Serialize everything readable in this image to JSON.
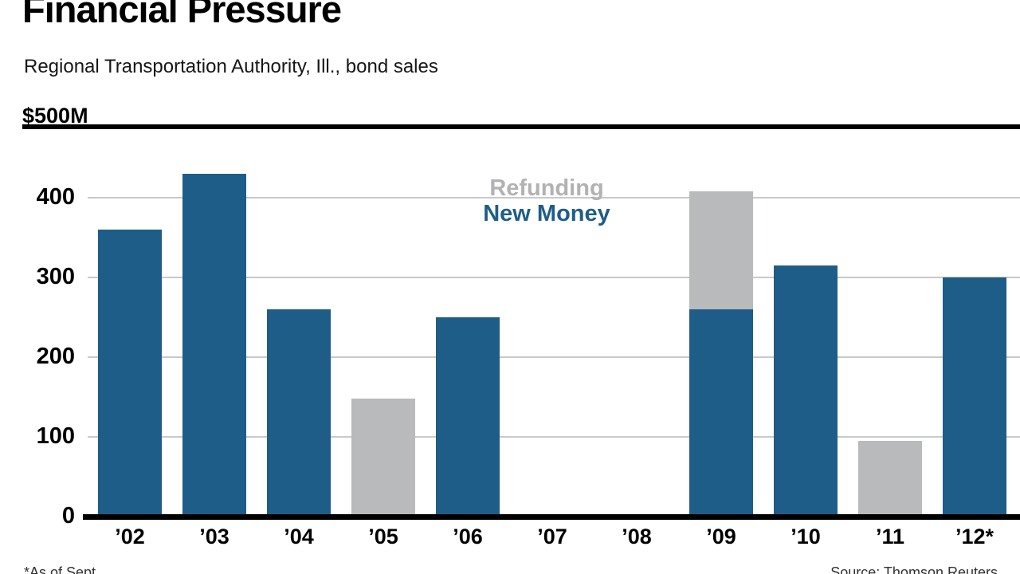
{
  "header": {
    "title": "Financial Pressure",
    "subtitle": "Regional Transportation Authority, Ill., bond sales",
    "unit_label": "$500M"
  },
  "legend": {
    "refunding_label": "Refunding",
    "new_money_label": "New Money"
  },
  "footer": {
    "left_note": "*As of Sept.",
    "source": "Source: Thomson Reuters"
  },
  "colors": {
    "new_money": "#1e5d88",
    "refunding": "#b9babb",
    "gridline": "#c9c9c9",
    "axis": "#000000"
  },
  "chart_data": {
    "type": "bar",
    "stacked": true,
    "title": "Financial Pressure",
    "subtitle": "Regional Transportation Authority, Ill., bond sales",
    "ylabel": "$500M",
    "xlabel": "",
    "ylim": [
      0,
      500
    ],
    "yticks": [
      0,
      100,
      200,
      300,
      400
    ],
    "grid": true,
    "legend_position": "center",
    "categories": [
      "’02",
      "’03",
      "’04",
      "’05",
      "’06",
      "’07",
      "’08",
      "’09",
      "’10",
      "’11",
      "’12*"
    ],
    "series": [
      {
        "name": "New Money",
        "color": "#1e5d88",
        "values": [
          360,
          430,
          260,
          0,
          250,
          0,
          0,
          260,
          315,
          0,
          300
        ]
      },
      {
        "name": "Refunding",
        "color": "#b9babb",
        "values": [
          0,
          0,
          0,
          148,
          0,
          0,
          0,
          148,
          0,
          95,
          0
        ]
      }
    ]
  }
}
